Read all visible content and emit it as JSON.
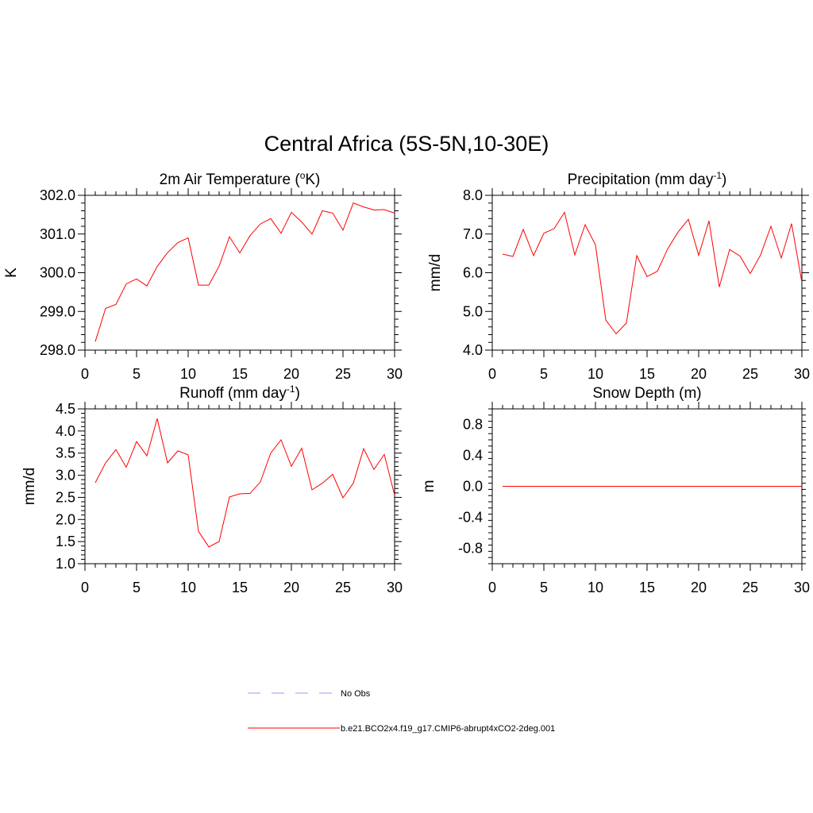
{
  "figure": {
    "title": "Central Africa (5S-5N,10-30E)",
    "series_color": "#ff0000",
    "obs_color": "#9999ff"
  },
  "legend": {
    "obs_label": "No Obs",
    "model_label": "b.e21.BCO2x4.f19_g17.CMIP6-abrupt4xCO2-2deg.001"
  },
  "chart_data": [
    {
      "type": "line",
      "title": "2m Air Temperature (oK)",
      "title_parts": [
        "2m Air Temperature (",
        "o",
        "K)"
      ],
      "ylabel": "K",
      "xlim": [
        0,
        30
      ],
      "ylim": [
        298,
        302
      ],
      "xticks": [
        0,
        5,
        10,
        15,
        20,
        25,
        30
      ],
      "yticks": [
        298,
        299,
        300,
        301,
        302
      ],
      "ytick_labels": [
        "298.0",
        "299.0",
        "300.0",
        "301.0",
        "302.0"
      ],
      "series": [
        {
          "x": [
            1,
            2,
            3,
            4,
            5,
            6,
            7,
            8,
            9,
            10,
            11,
            12,
            13,
            14,
            15,
            16,
            17,
            18,
            19,
            20,
            21,
            22,
            23,
            24,
            25,
            26,
            27,
            28,
            29,
            30
          ],
          "values": [
            298.22,
            299.08,
            299.18,
            299.71,
            299.84,
            299.66,
            300.16,
            300.52,
            300.78,
            300.9,
            299.68,
            299.68,
            300.17,
            300.93,
            300.51,
            300.96,
            301.26,
            301.4,
            301.02,
            301.56,
            301.31,
            301.0,
            301.6,
            301.54,
            301.1,
            301.8,
            301.7,
            301.62,
            301.63,
            301.54
          ]
        }
      ]
    },
    {
      "type": "line",
      "title": "Precipitation (mm day-1)",
      "title_parts": [
        "Precipitation (mm day",
        "-1",
        ")"
      ],
      "ylabel": "mm/d",
      "xlim": [
        0,
        30
      ],
      "ylim": [
        4,
        8
      ],
      "xticks": [
        0,
        5,
        10,
        15,
        20,
        25,
        30
      ],
      "yticks": [
        4,
        5,
        6,
        7,
        8
      ],
      "ytick_labels": [
        "4.0",
        "5.0",
        "6.0",
        "7.0",
        "8.0"
      ],
      "series": [
        {
          "x": [
            1,
            2,
            3,
            4,
            5,
            6,
            7,
            8,
            9,
            10,
            11,
            12,
            13,
            14,
            15,
            16,
            17,
            18,
            19,
            20,
            21,
            22,
            23,
            24,
            25,
            26,
            27,
            28,
            29,
            30
          ],
          "values": [
            6.48,
            6.42,
            7.12,
            6.44,
            7.02,
            7.14,
            7.56,
            6.46,
            7.24,
            6.72,
            4.78,
            4.42,
            4.7,
            6.44,
            5.9,
            6.04,
            6.62,
            7.05,
            7.38,
            6.45,
            7.34,
            5.63,
            6.6,
            6.43,
            5.98,
            6.46,
            7.2,
            6.38,
            7.27,
            5.75
          ]
        }
      ]
    },
    {
      "type": "line",
      "title": "Runoff (mm day-1)",
      "title_parts": [
        "Runoff (mm day",
        "-1",
        ")"
      ],
      "ylabel": "mm/d",
      "xlim": [
        0,
        30
      ],
      "ylim": [
        1,
        4.5
      ],
      "xticks": [
        0,
        5,
        10,
        15,
        20,
        25,
        30
      ],
      "yticks": [
        1,
        1.5,
        2,
        2.5,
        3,
        3.5,
        4,
        4.5
      ],
      "ytick_labels": [
        "1.0",
        "1.5",
        "2.0",
        "2.5",
        "3.0",
        "3.5",
        "4.0",
        "4.5"
      ],
      "series": [
        {
          "x": [
            1,
            2,
            3,
            4,
            5,
            6,
            7,
            8,
            9,
            10,
            11,
            12,
            13,
            14,
            15,
            16,
            17,
            18,
            19,
            20,
            21,
            22,
            23,
            24,
            25,
            26,
            27,
            28,
            29,
            30
          ],
          "values": [
            2.83,
            3.28,
            3.58,
            3.18,
            3.76,
            3.44,
            4.28,
            3.28,
            3.55,
            3.46,
            1.73,
            1.38,
            1.5,
            2.51,
            2.58,
            2.59,
            2.85,
            3.5,
            3.8,
            3.2,
            3.61,
            2.67,
            2.82,
            3.02,
            2.49,
            2.82,
            3.6,
            3.13,
            3.47,
            2.55
          ]
        }
      ]
    },
    {
      "type": "line",
      "title": "Snow Depth (m)",
      "title_parts": [
        "Snow Depth (m)",
        "",
        ""
      ],
      "ylabel": "m",
      "xlim": [
        0,
        30
      ],
      "ylim": [
        -1,
        1
      ],
      "xticks": [
        0,
        5,
        10,
        15,
        20,
        25,
        30
      ],
      "yticks": [
        -0.8,
        -0.4,
        0,
        0.4,
        0.8
      ],
      "ytick_labels": [
        "-0.8",
        "-0.4",
        "0.0",
        "0.4",
        "0.8"
      ],
      "series": [
        {
          "x": [
            1,
            2,
            3,
            4,
            5,
            6,
            7,
            8,
            9,
            10,
            11,
            12,
            13,
            14,
            15,
            16,
            17,
            18,
            19,
            20,
            21,
            22,
            23,
            24,
            25,
            26,
            27,
            28,
            29,
            30
          ],
          "values": [
            0,
            0,
            0,
            0,
            0,
            0,
            0,
            0,
            0,
            0,
            0,
            0,
            0,
            0,
            0,
            0,
            0,
            0,
            0,
            0,
            0,
            0,
            0,
            0,
            0,
            0,
            0,
            0,
            0,
            0
          ]
        }
      ]
    }
  ]
}
